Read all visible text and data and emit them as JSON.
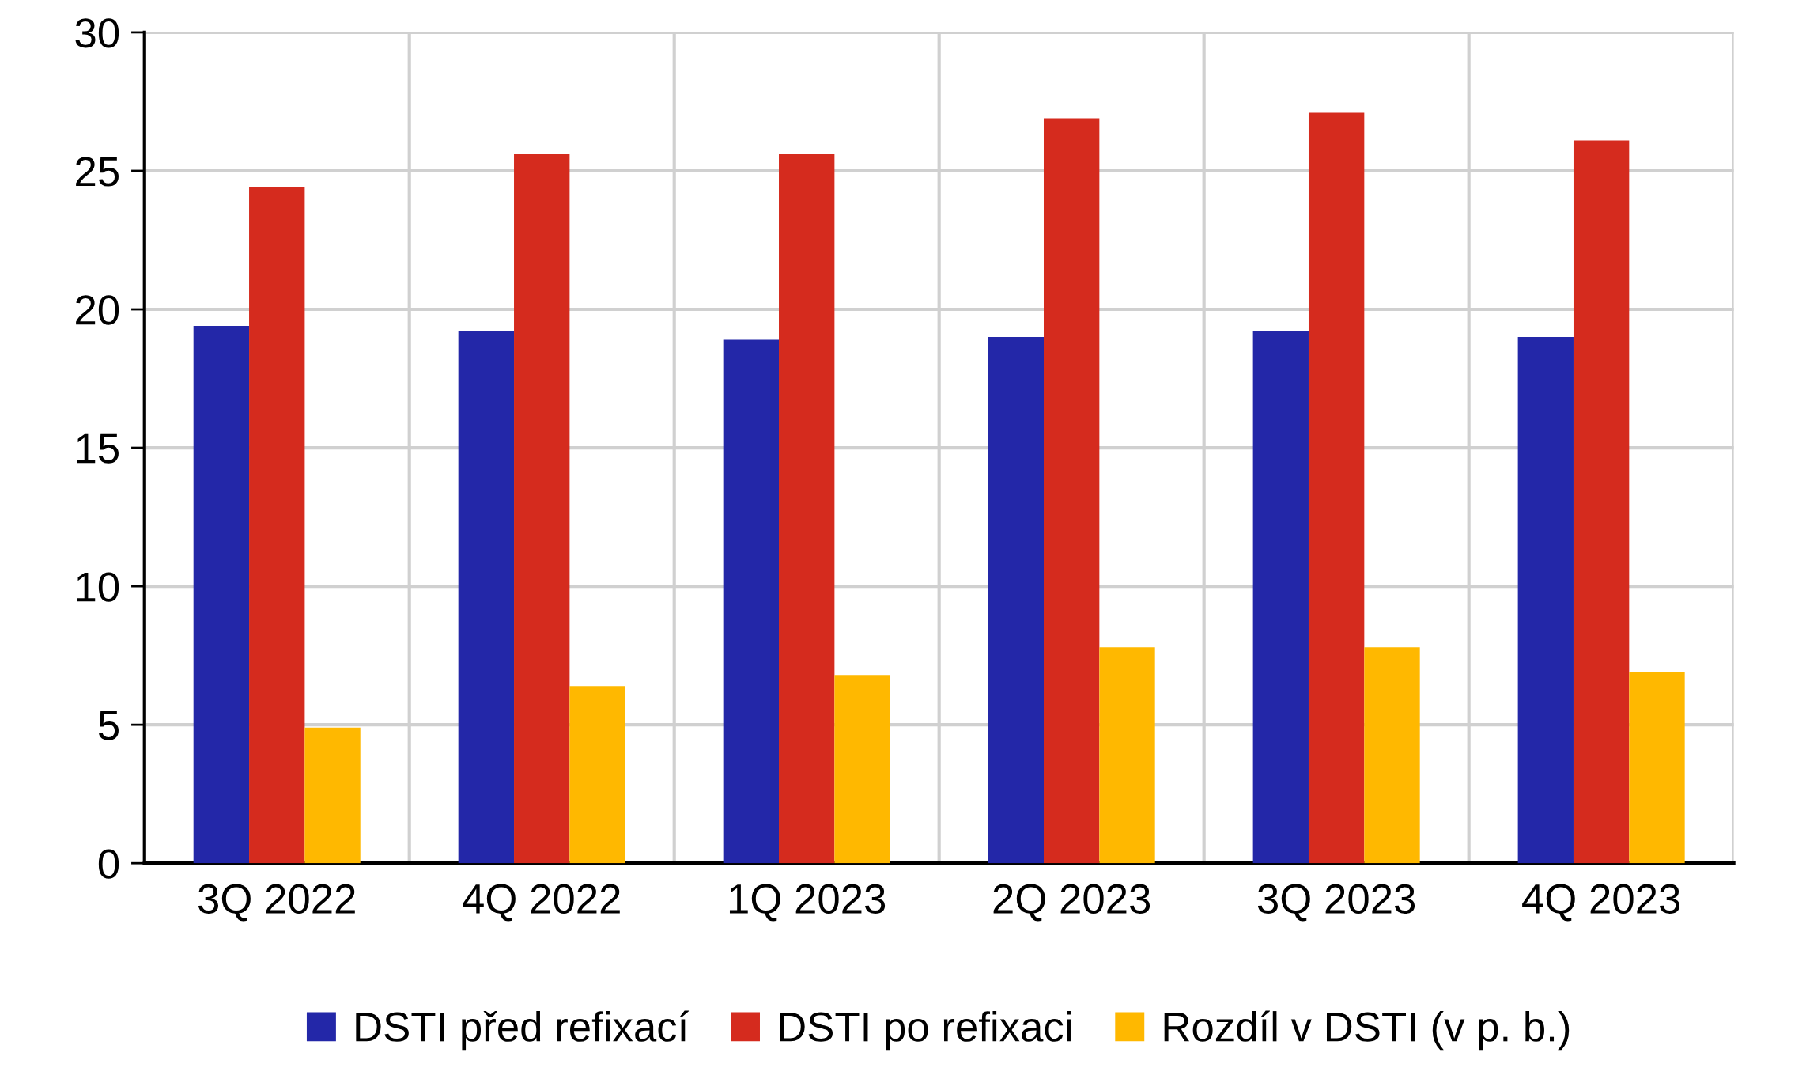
{
  "chart_data": {
    "type": "bar",
    "categories": [
      "3Q 2022",
      "4Q 2022",
      "1Q 2023",
      "2Q 2023",
      "3Q 2023",
      "4Q 2023"
    ],
    "series": [
      {
        "name": "DSTI před refixací",
        "color": "#2327a8",
        "values": [
          19.4,
          19.2,
          18.9,
          19.0,
          19.2,
          19.0
        ]
      },
      {
        "name": "DSTI po refixaci",
        "color": "#d52b1e",
        "values": [
          24.4,
          25.6,
          25.6,
          26.9,
          27.1,
          26.1
        ]
      },
      {
        "name": "Rozdíl v DSTI (v p. b.)",
        "color": "#ffb800",
        "values": [
          4.9,
          6.4,
          6.8,
          7.8,
          7.8,
          6.9
        ]
      }
    ],
    "ylim": [
      0,
      30
    ],
    "yticks": [
      0,
      5,
      10,
      15,
      20,
      25,
      30
    ],
    "grid": true,
    "legend": "bottom"
  }
}
